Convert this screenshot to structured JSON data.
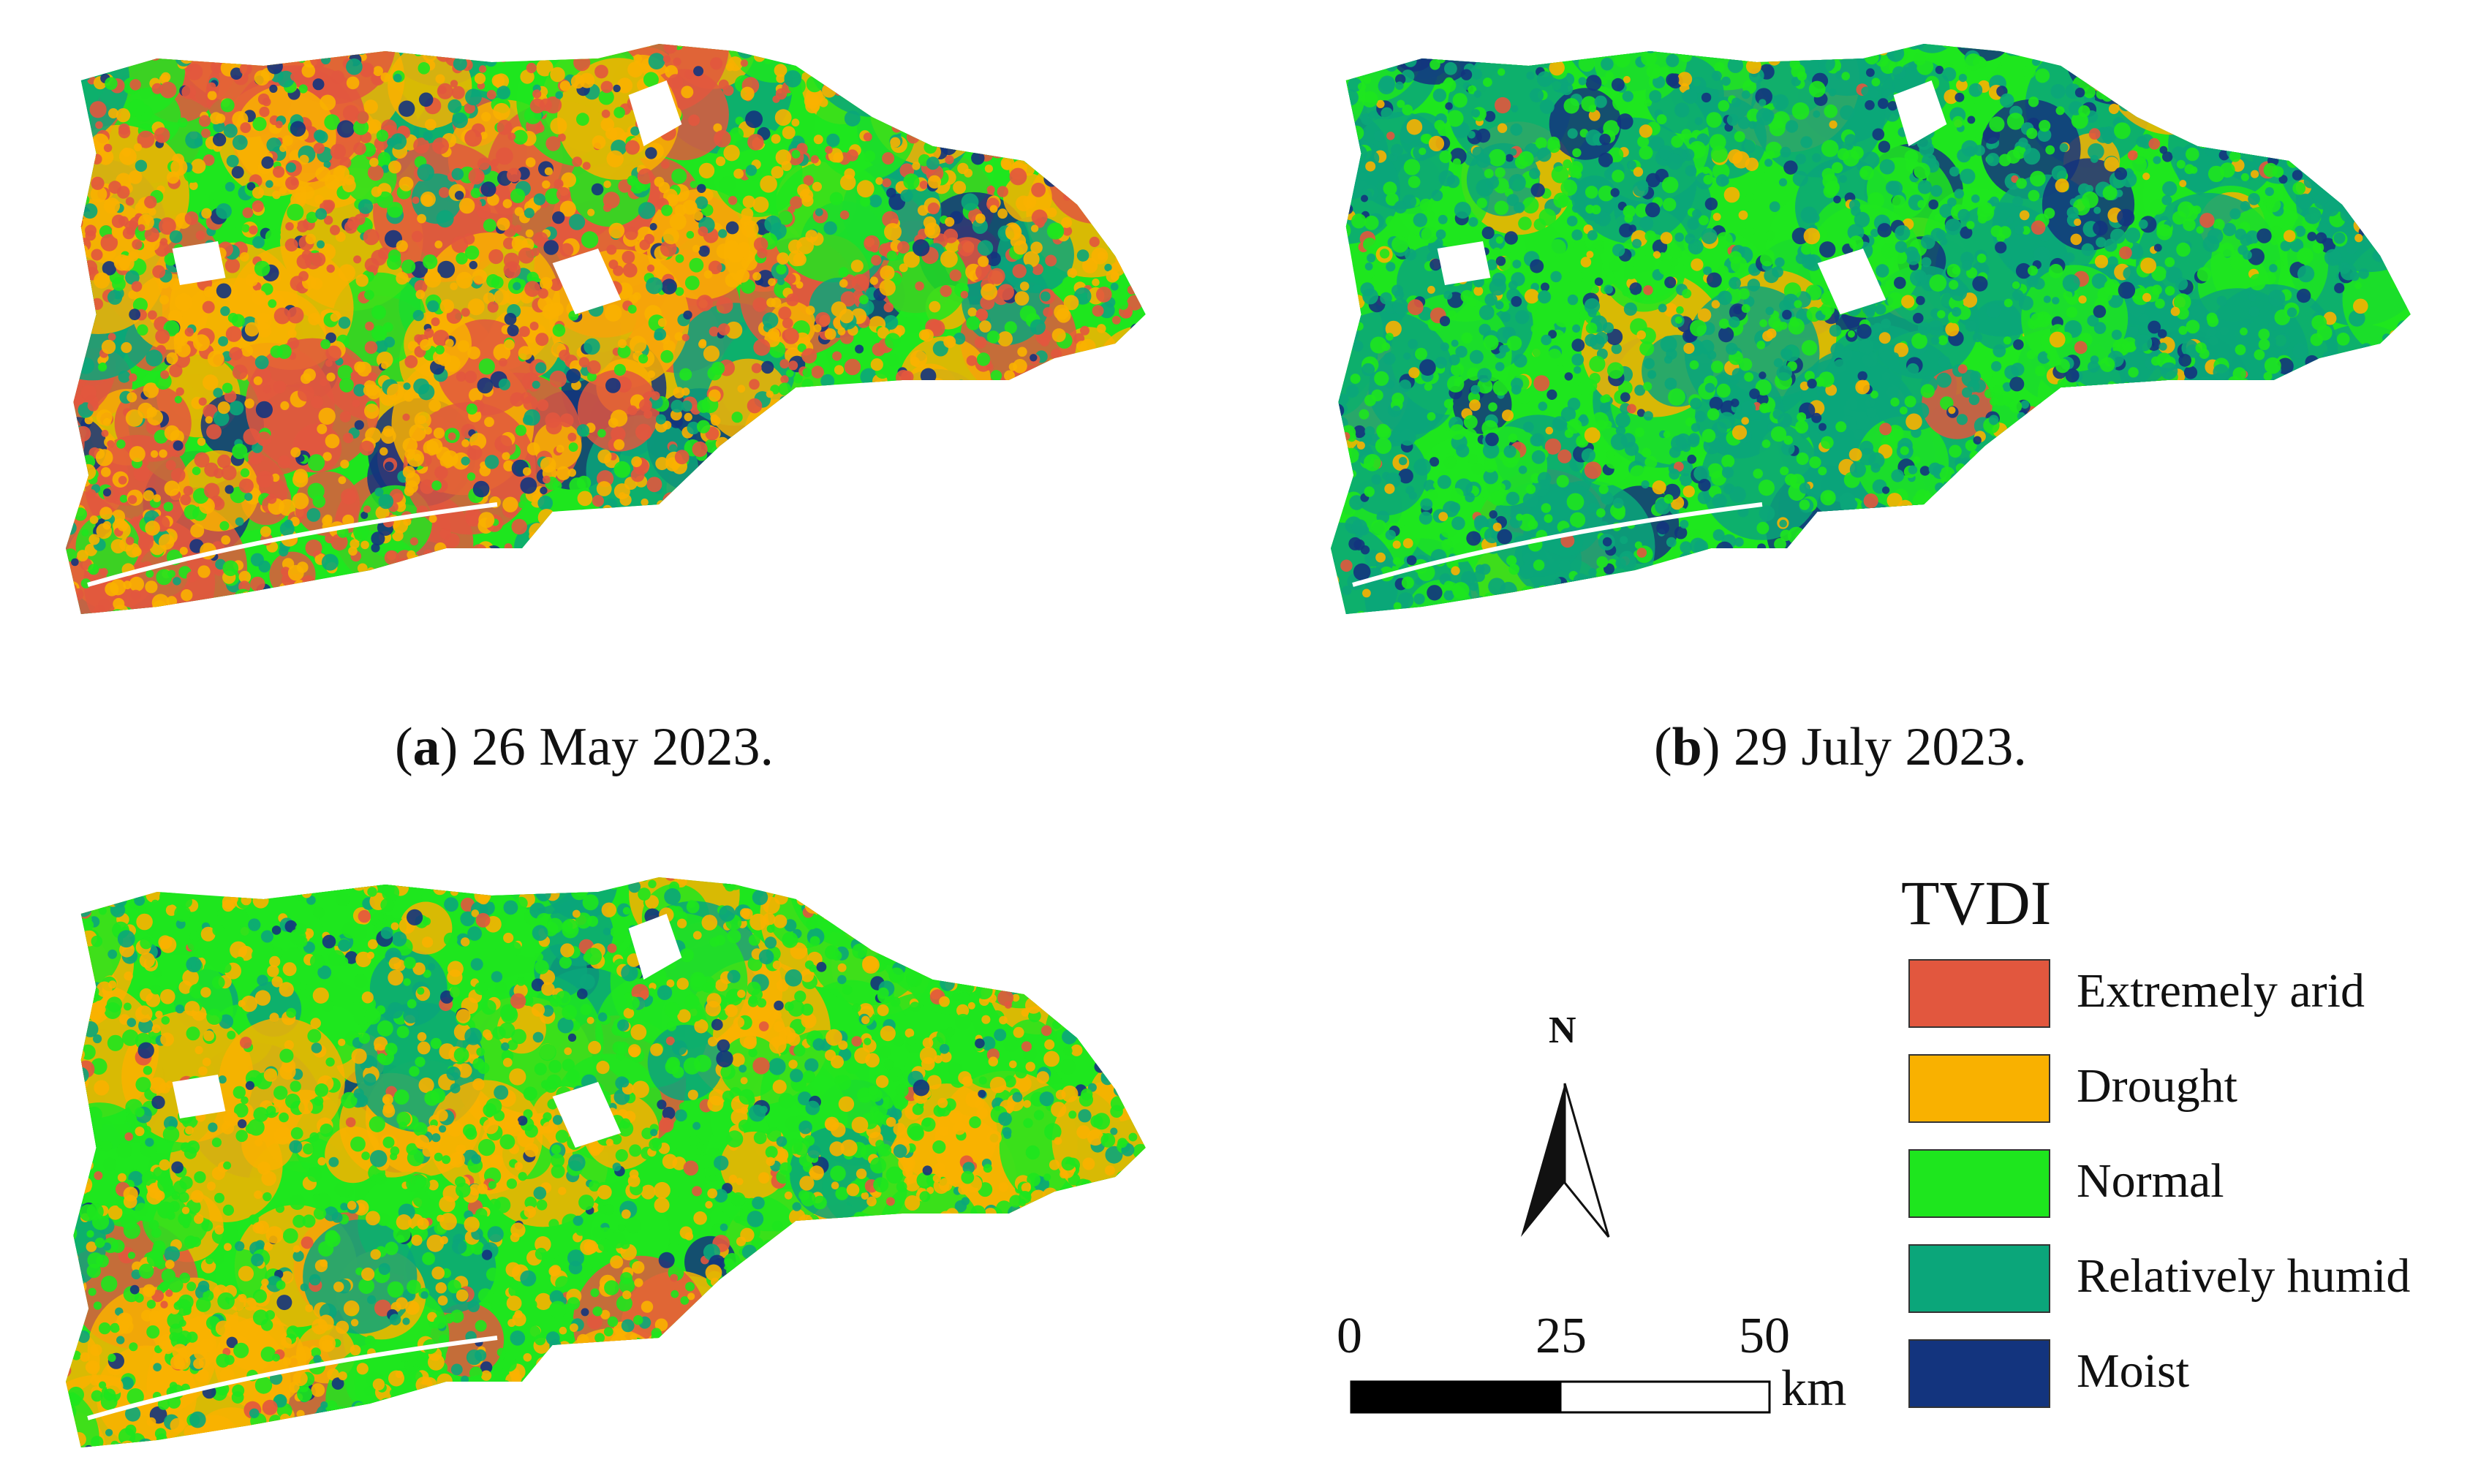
{
  "panels": [
    {
      "caption_letter": "a",
      "caption_text": ") 26 May 2023.",
      "palette_weights": [
        0.32,
        0.36,
        0.14,
        0.12,
        0.06
      ]
    },
    {
      "caption_letter": "b",
      "caption_text": ") 29 July 2023.",
      "palette_weights": [
        0.02,
        0.08,
        0.38,
        0.4,
        0.12
      ]
    },
    {
      "caption_letter": "",
      "caption_text": "",
      "palette_weights": [
        0.04,
        0.34,
        0.46,
        0.13,
        0.03
      ]
    }
  ],
  "legend": {
    "title": "TVDI",
    "items": [
      {
        "label": "Extremely arid",
        "color": "#e2573e"
      },
      {
        "label": "Drought",
        "color": "#f9b100"
      },
      {
        "label": "Normal",
        "color": "#1ee61e"
      },
      {
        "label": "Relatively humid",
        "color": "#0ba67a"
      },
      {
        "label": "Moist",
        "color": "#13347e"
      }
    ]
  },
  "north_arrow": {
    "label": "N",
    "icon": "north-arrow-icon"
  },
  "scale_bar": {
    "ticks": [
      "0",
      "25",
      "50"
    ],
    "unit": "km"
  }
}
